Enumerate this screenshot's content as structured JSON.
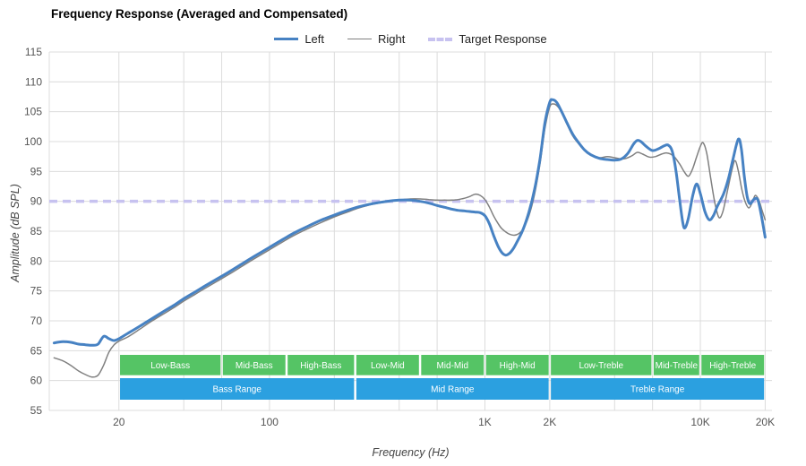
{
  "legend": {
    "items": [
      {
        "label": "Left",
        "color": "#4782c3",
        "swatch": "solid-thick"
      },
      {
        "label": "Right",
        "color": "#808080",
        "swatch": "solid-thin"
      },
      {
        "label": "Target Response",
        "color": "#c7c2f0",
        "swatch": "dashed"
      }
    ]
  },
  "chart_data": {
    "type": "line",
    "title": "Frequency Response (Averaged and Compensated)",
    "xlabel": "Frequency (Hz)",
    "ylabel": "Amplitude (dB SPL)",
    "x_scale": "log",
    "xlim": [
      9.5,
      21500
    ],
    "ylim": [
      55,
      115
    ],
    "grid": true,
    "legend_position": "top-center",
    "y_ticks": [
      55,
      60,
      65,
      70,
      75,
      80,
      85,
      90,
      95,
      100,
      105,
      110,
      115
    ],
    "x_ticks": [
      {
        "value": 20,
        "label": "20"
      },
      {
        "value": 100,
        "label": "100"
      },
      {
        "value": 1000,
        "label": "1K"
      },
      {
        "value": 2000,
        "label": "2K"
      },
      {
        "value": 10000,
        "label": "10K"
      },
      {
        "value": 20000,
        "label": "20K"
      }
    ],
    "x_gridlines": [
      20,
      40,
      60,
      100,
      200,
      400,
      600,
      1000,
      2000,
      4000,
      6000,
      10000,
      20000
    ],
    "target_response": {
      "db": 90,
      "color": "#c7c2f0"
    },
    "series": [
      {
        "name": "Left",
        "color": "#4782c3",
        "width": 3,
        "points": [
          [
            10,
            66.3
          ],
          [
            11,
            66.5
          ],
          [
            12,
            66.4
          ],
          [
            13,
            66.1
          ],
          [
            14,
            66.0
          ],
          [
            15,
            65.9
          ],
          [
            16,
            66.1
          ],
          [
            17,
            67.4
          ],
          [
            18,
            67.0
          ],
          [
            19,
            66.7
          ],
          [
            20,
            67.0
          ],
          [
            22,
            67.9
          ],
          [
            25,
            69.1
          ],
          [
            28,
            70.2
          ],
          [
            32,
            71.5
          ],
          [
            36,
            72.6
          ],
          [
            40,
            73.7
          ],
          [
            45,
            74.8
          ],
          [
            50,
            75.8
          ],
          [
            57,
            77.0
          ],
          [
            65,
            78.2
          ],
          [
            75,
            79.6
          ],
          [
            85,
            80.8
          ],
          [
            100,
            82.3
          ],
          [
            115,
            83.6
          ],
          [
            130,
            84.7
          ],
          [
            150,
            85.8
          ],
          [
            175,
            86.9
          ],
          [
            200,
            87.7
          ],
          [
            230,
            88.5
          ],
          [
            260,
            89.1
          ],
          [
            300,
            89.6
          ],
          [
            350,
            90.0
          ],
          [
            400,
            90.2
          ],
          [
            450,
            90.2
          ],
          [
            500,
            90.0
          ],
          [
            550,
            89.7
          ],
          [
            600,
            89.3
          ],
          [
            650,
            89.0
          ],
          [
            700,
            88.7
          ],
          [
            750,
            88.5
          ],
          [
            800,
            88.4
          ],
          [
            850,
            88.3
          ],
          [
            900,
            88.2
          ],
          [
            950,
            88.1
          ],
          [
            1000,
            87.6
          ],
          [
            1050,
            86.2
          ],
          [
            1100,
            84.2
          ],
          [
            1150,
            82.5
          ],
          [
            1200,
            81.4
          ],
          [
            1250,
            81.0
          ],
          [
            1300,
            81.3
          ],
          [
            1350,
            82.0
          ],
          [
            1400,
            83.0
          ],
          [
            1500,
            85.2
          ],
          [
            1600,
            88.2
          ],
          [
            1700,
            92.0
          ],
          [
            1800,
            97.0
          ],
          [
            1900,
            103.2
          ],
          [
            2000,
            106.6
          ],
          [
            2060,
            107.0
          ],
          [
            2150,
            106.6
          ],
          [
            2250,
            105.3
          ],
          [
            2400,
            103.2
          ],
          [
            2550,
            101.3
          ],
          [
            2700,
            100.0
          ],
          [
            2900,
            98.6
          ],
          [
            3100,
            97.8
          ],
          [
            3400,
            97.2
          ],
          [
            3700,
            97.0
          ],
          [
            4000,
            96.9
          ],
          [
            4300,
            97.1
          ],
          [
            4600,
            98.0
          ],
          [
            4900,
            99.6
          ],
          [
            5100,
            100.2
          ],
          [
            5300,
            100.0
          ],
          [
            5600,
            99.2
          ],
          [
            6000,
            98.5
          ],
          [
            6400,
            98.8
          ],
          [
            6800,
            99.3
          ],
          [
            7100,
            99.4
          ],
          [
            7400,
            98.4
          ],
          [
            7700,
            95.2
          ],
          [
            8000,
            90.5
          ],
          [
            8300,
            86.3
          ],
          [
            8500,
            85.6
          ],
          [
            8800,
            87.2
          ],
          [
            9200,
            90.8
          ],
          [
            9600,
            92.9
          ],
          [
            10000,
            91.3
          ],
          [
            10500,
            88.3
          ],
          [
            11000,
            86.9
          ],
          [
            11500,
            87.6
          ],
          [
            12000,
            89.2
          ],
          [
            12800,
            91.2
          ],
          [
            13500,
            93.8
          ],
          [
            14200,
            97.2
          ],
          [
            15000,
            100.4
          ],
          [
            15500,
            98.8
          ],
          [
            16000,
            94.2
          ],
          [
            16500,
            90.8
          ],
          [
            17000,
            89.6
          ],
          [
            17800,
            90.4
          ],
          [
            18500,
            90.2
          ],
          [
            19200,
            87.6
          ],
          [
            20000,
            84.0
          ]
        ]
      },
      {
        "name": "Right",
        "color": "#808080",
        "width": 1.5,
        "points": [
          [
            10,
            63.8
          ],
          [
            11,
            63.3
          ],
          [
            12,
            62.5
          ],
          [
            13,
            61.6
          ],
          [
            14,
            61.0
          ],
          [
            15,
            60.6
          ],
          [
            16,
            60.9
          ],
          [
            17,
            62.6
          ],
          [
            18,
            64.8
          ],
          [
            19,
            66.0
          ],
          [
            20,
            66.6
          ],
          [
            22,
            67.3
          ],
          [
            25,
            68.6
          ],
          [
            28,
            69.8
          ],
          [
            32,
            71.1
          ],
          [
            36,
            72.2
          ],
          [
            40,
            73.3
          ],
          [
            45,
            74.4
          ],
          [
            50,
            75.4
          ],
          [
            57,
            76.6
          ],
          [
            65,
            77.8
          ],
          [
            75,
            79.2
          ],
          [
            85,
            80.4
          ],
          [
            100,
            81.9
          ],
          [
            115,
            83.2
          ],
          [
            130,
            84.3
          ],
          [
            150,
            85.4
          ],
          [
            175,
            86.5
          ],
          [
            200,
            87.4
          ],
          [
            230,
            88.2
          ],
          [
            260,
            88.9
          ],
          [
            300,
            89.5
          ],
          [
            350,
            89.9
          ],
          [
            400,
            90.2
          ],
          [
            450,
            90.4
          ],
          [
            500,
            90.4
          ],
          [
            550,
            90.3
          ],
          [
            600,
            90.2
          ],
          [
            650,
            90.2
          ],
          [
            700,
            90.2
          ],
          [
            750,
            90.3
          ],
          [
            800,
            90.5
          ],
          [
            850,
            90.8
          ],
          [
            900,
            91.2
          ],
          [
            950,
            91.0
          ],
          [
            1000,
            90.3
          ],
          [
            1050,
            89.0
          ],
          [
            1100,
            87.5
          ],
          [
            1150,
            86.3
          ],
          [
            1200,
            85.4
          ],
          [
            1300,
            84.5
          ],
          [
            1400,
            84.4
          ],
          [
            1500,
            85.3
          ],
          [
            1600,
            87.6
          ],
          [
            1700,
            91.2
          ],
          [
            1800,
            96.2
          ],
          [
            1900,
            102.2
          ],
          [
            2000,
            105.8
          ],
          [
            2080,
            106.3
          ],
          [
            2160,
            106.0
          ],
          [
            2260,
            105.0
          ],
          [
            2400,
            103.0
          ],
          [
            2550,
            101.0
          ],
          [
            2700,
            99.8
          ],
          [
            2900,
            98.5
          ],
          [
            3100,
            97.8
          ],
          [
            3400,
            97.3
          ],
          [
            3700,
            97.5
          ],
          [
            4000,
            97.3
          ],
          [
            4400,
            97.1
          ],
          [
            4800,
            97.6
          ],
          [
            5100,
            98.2
          ],
          [
            5400,
            97.9
          ],
          [
            5800,
            97.4
          ],
          [
            6200,
            97.5
          ],
          [
            6600,
            97.9
          ],
          [
            7000,
            98.1
          ],
          [
            7500,
            97.6
          ],
          [
            8000,
            96.3
          ],
          [
            8400,
            95.0
          ],
          [
            8800,
            94.2
          ],
          [
            9200,
            95.4
          ],
          [
            9600,
            97.4
          ],
          [
            10000,
            99.2
          ],
          [
            10300,
            99.8
          ],
          [
            10700,
            98.1
          ],
          [
            11200,
            93.6
          ],
          [
            11700,
            89.6
          ],
          [
            12200,
            87.3
          ],
          [
            12700,
            88.2
          ],
          [
            13300,
            91.4
          ],
          [
            14000,
            95.2
          ],
          [
            14500,
            96.8
          ],
          [
            15000,
            95.1
          ],
          [
            15600,
            91.9
          ],
          [
            16200,
            89.8
          ],
          [
            16800,
            88.9
          ],
          [
            17400,
            89.8
          ],
          [
            18000,
            91.0
          ],
          [
            18700,
            90.2
          ],
          [
            19300,
            88.6
          ],
          [
            20000,
            86.9
          ]
        ]
      }
    ],
    "bands": {
      "sub_color": "#55c465",
      "main_color": "#2ba0e0",
      "sub": [
        {
          "label": "Low-Bass",
          "from": 20,
          "to": 60
        },
        {
          "label": "Mid-Bass",
          "from": 60,
          "to": 120
        },
        {
          "label": "High-Bass",
          "from": 120,
          "to": 250
        },
        {
          "label": "Low-Mid",
          "from": 250,
          "to": 500
        },
        {
          "label": "Mid-Mid",
          "from": 500,
          "to": 1000
        },
        {
          "label": "High-Mid",
          "from": 1000,
          "to": 2000
        },
        {
          "label": "Low-Treble",
          "from": 2000,
          "to": 6000
        },
        {
          "label": "Mid-Treble",
          "from": 6000,
          "to": 10000
        },
        {
          "label": "High-Treble",
          "from": 10000,
          "to": 20000
        }
      ],
      "main": [
        {
          "label": "Bass Range",
          "from": 20,
          "to": 250
        },
        {
          "label": "Mid Range",
          "from": 250,
          "to": 2000
        },
        {
          "label": "Treble Range",
          "from": 2000,
          "to": 20000
        }
      ]
    }
  }
}
